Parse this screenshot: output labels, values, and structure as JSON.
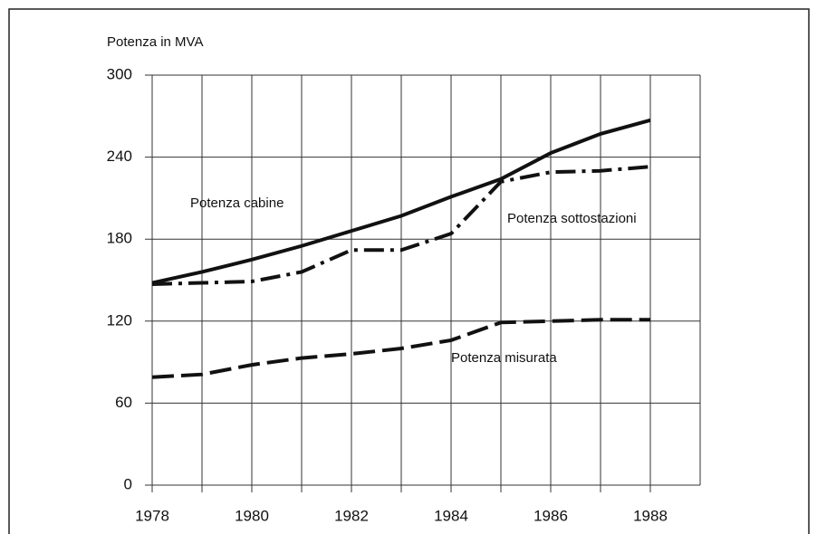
{
  "chart_data": {
    "type": "line",
    "y_label": "Potenza in MVA",
    "x": [
      1978,
      1979,
      1980,
      1981,
      1982,
      1983,
      1984,
      1985,
      1986,
      1987,
      1988
    ],
    "series": [
      {
        "name": "Potenza cabine",
        "color": "#111111",
        "dash": "solid",
        "values": [
          148,
          156,
          165,
          175,
          186,
          197,
          211,
          224,
          243,
          257,
          267
        ]
      },
      {
        "name": "Potenza sottostazioni",
        "color": "#111111",
        "dash": "dashdot",
        "values": [
          147,
          148,
          149,
          156,
          172,
          172,
          184,
          222,
          229,
          230,
          233
        ]
      },
      {
        "name": "Potenza misurata",
        "color": "#111111",
        "dash": "dashed",
        "values": [
          79,
          81,
          88,
          93,
          96,
          100,
          106,
          119,
          120,
          121,
          121
        ]
      }
    ],
    "xlim": [
      1978,
      1989
    ],
    "xticks": [
      1978,
      1980,
      1982,
      1984,
      1986,
      1988
    ],
    "ylim": [
      0,
      300
    ],
    "yticks": [
      0,
      60,
      120,
      180,
      240,
      300
    ],
    "grid": true,
    "legend": "inline"
  }
}
